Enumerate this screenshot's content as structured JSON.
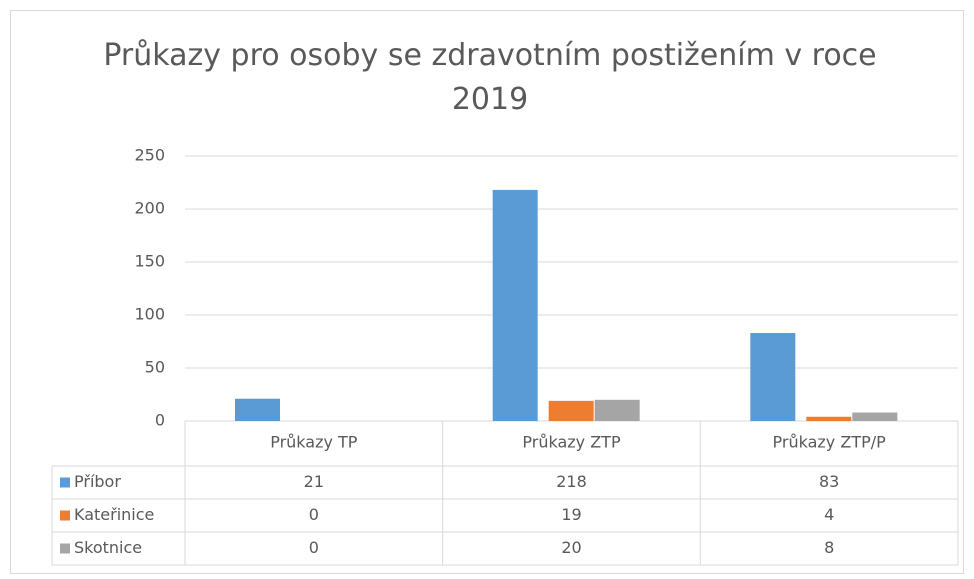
{
  "chart_data": {
    "type": "bar",
    "title": "Průkazy pro osoby se zdravotním postižením v roce 2019",
    "categories": [
      "Průkazy TP",
      "Průkazy ZTP",
      "Průkazy ZTP/P"
    ],
    "series": [
      {
        "name": "Příbor",
        "color": "#5b9bd5",
        "values": [
          21,
          218,
          83
        ]
      },
      {
        "name": "Kateřinice",
        "color": "#ed7d31",
        "values": [
          0,
          19,
          4
        ]
      },
      {
        "name": "Skotnice",
        "color": "#a5a5a5",
        "values": [
          0,
          20,
          8
        ]
      }
    ],
    "ylim": [
      0,
      250
    ],
    "yticks": [
      0,
      50,
      100,
      150,
      200,
      250
    ],
    "grid": true
  }
}
